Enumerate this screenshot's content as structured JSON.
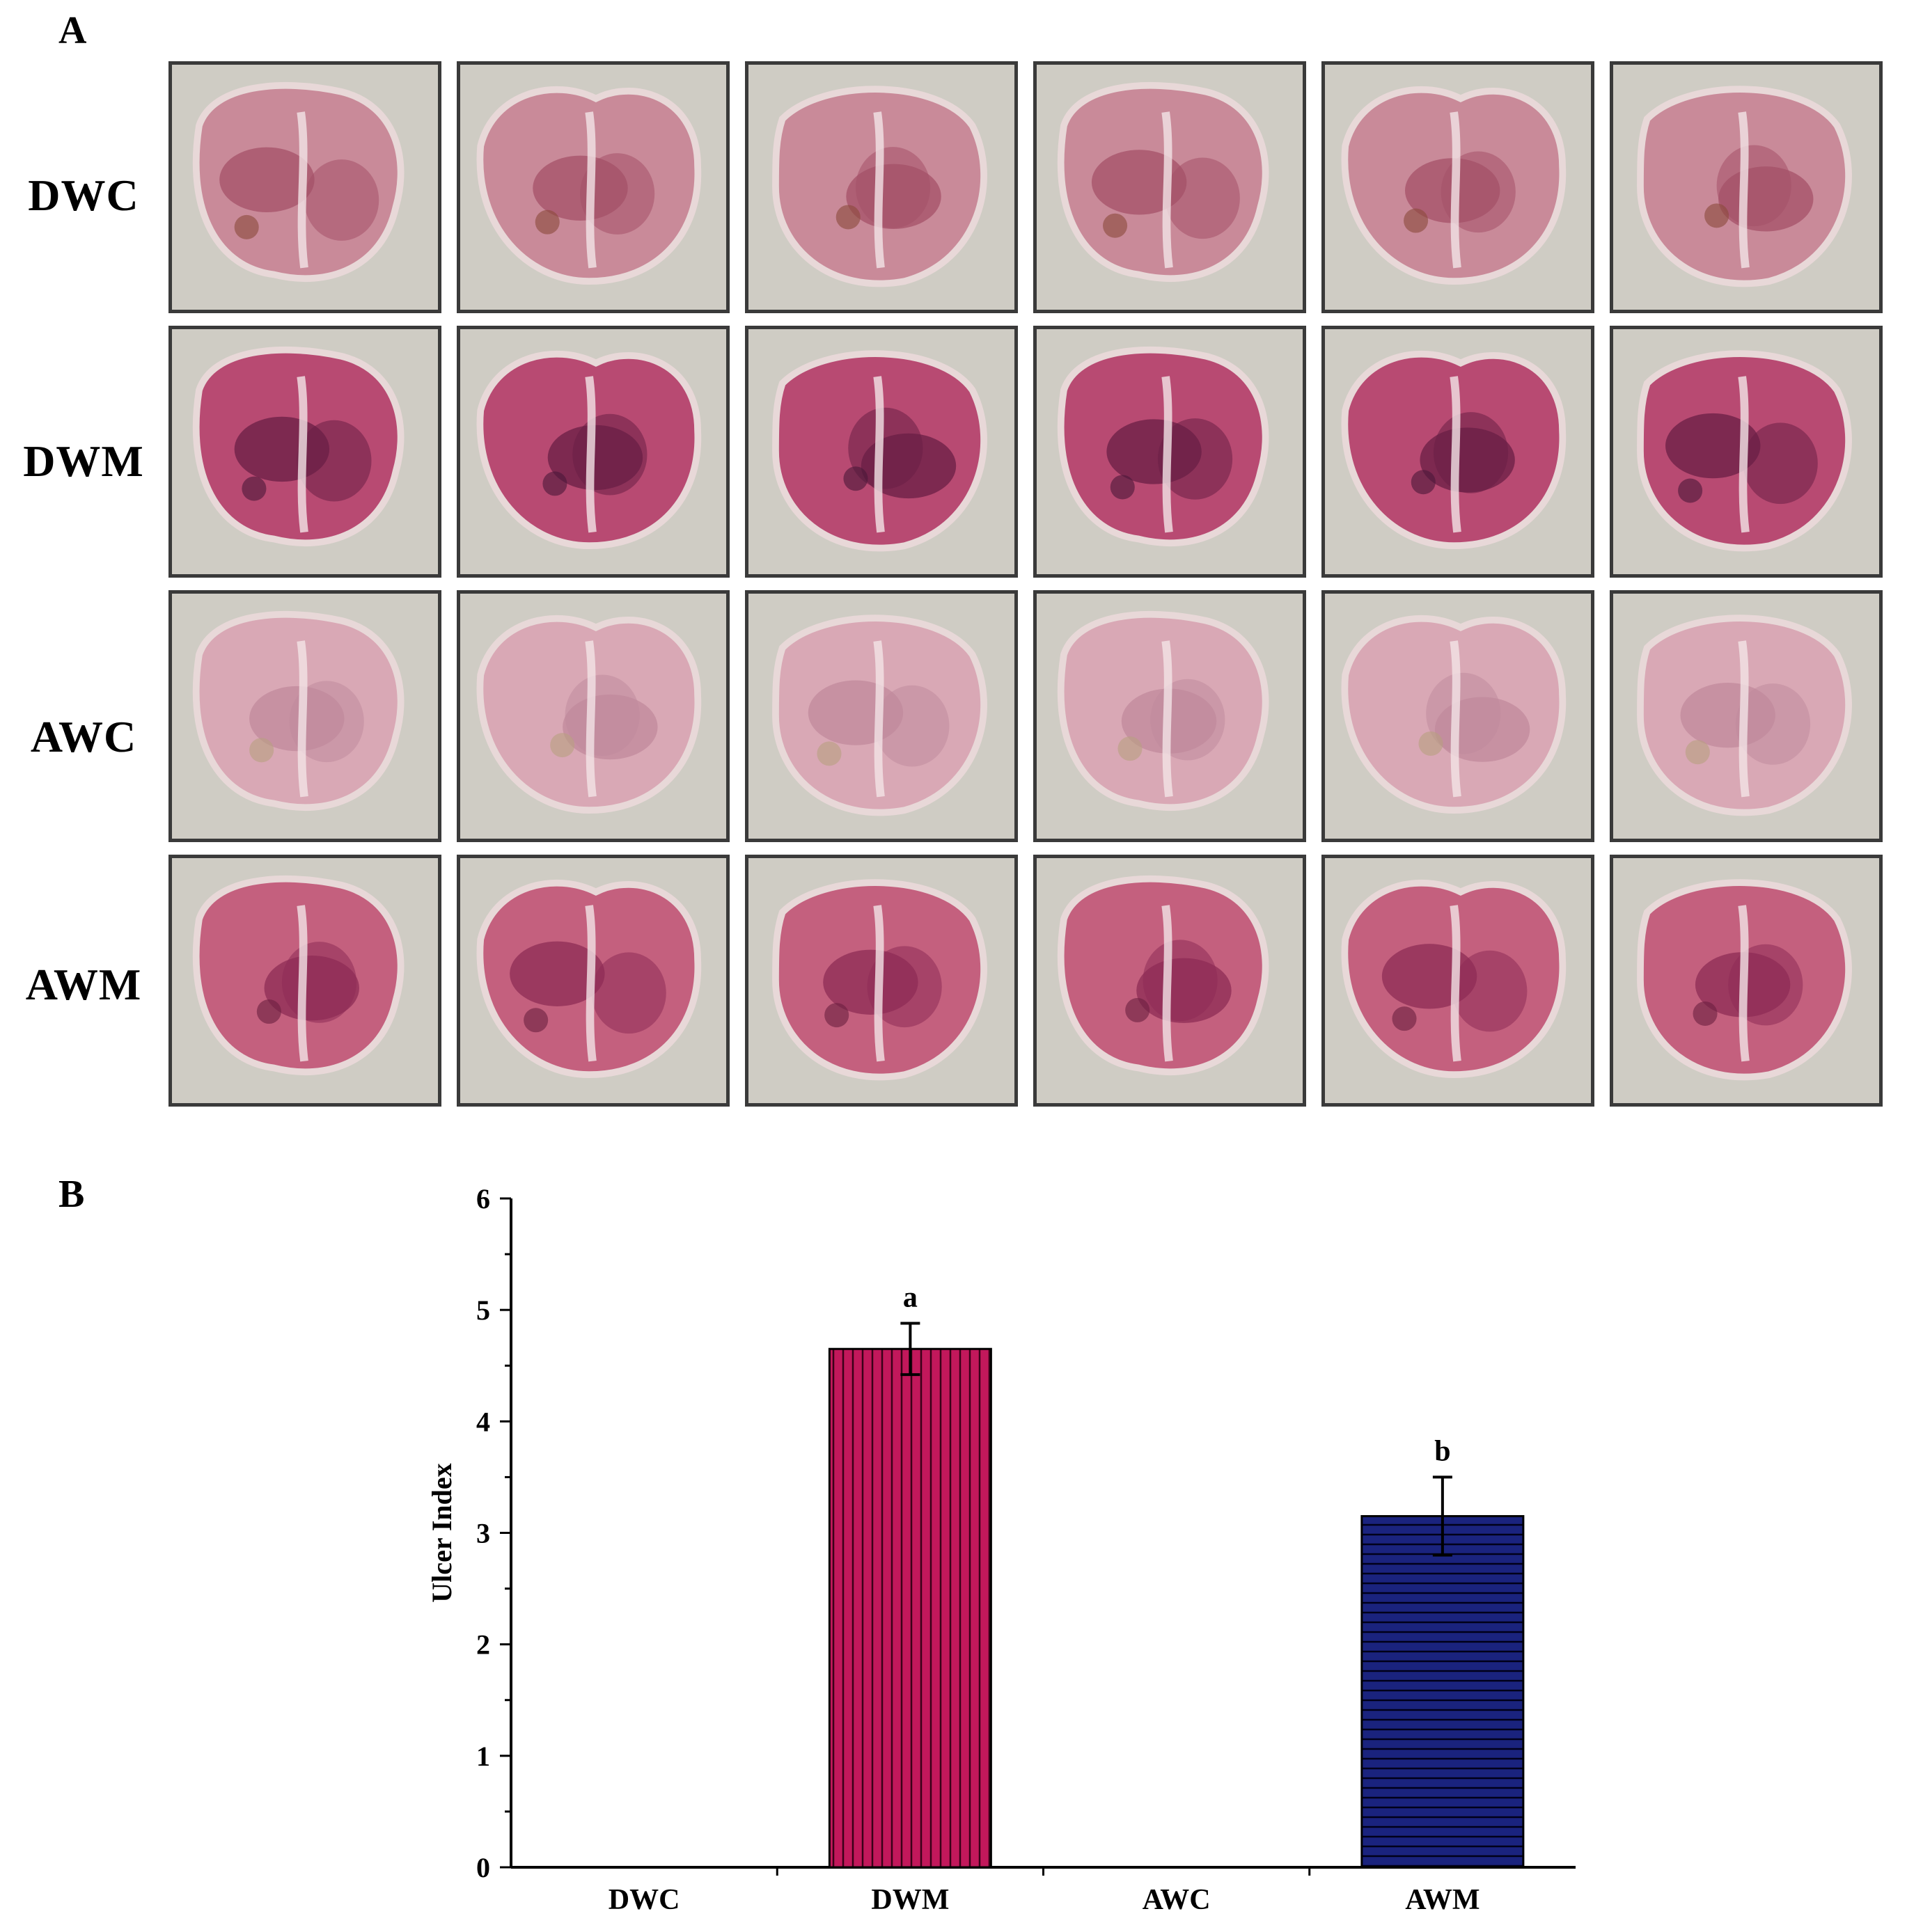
{
  "panel_a": {
    "label": "A",
    "rows": [
      {
        "label": "DWC",
        "tone": "#c98a99",
        "dark": "#a45068",
        "lesion": "#8a4a3a"
      },
      {
        "label": "DWM",
        "tone": "#b84a72",
        "dark": "#6a1f45",
        "lesion": "#4a1838"
      },
      {
        "label": "AWC",
        "tone": "#d9a8b5",
        "dark": "#c08a9c",
        "lesion": "#b8a080"
      },
      {
        "label": "AWM",
        "tone": "#c4607e",
        "dark": "#8e2c55",
        "lesion": "#6a2040"
      }
    ],
    "columns": 6,
    "background_tone": "#cfccc4"
  },
  "panel_b": {
    "label": "B"
  },
  "chart_data": {
    "type": "bar",
    "title": "",
    "xlabel": "",
    "ylabel": "Ulcer Index",
    "ylim": [
      0,
      6
    ],
    "yticks": [
      "0",
      "1",
      "2",
      "3",
      "4",
      "5",
      "6"
    ],
    "categories": [
      "DWC",
      "DWM",
      "AWC",
      "AWM"
    ],
    "values": [
      0,
      4.65,
      0,
      3.15
    ],
    "errors": [
      0,
      0.23,
      0,
      0.35
    ],
    "annotations": [
      "",
      "a",
      "",
      "b"
    ],
    "colors": [
      "#c2185b",
      "#c2185b",
      "#1a237e",
      "#1a237e"
    ],
    "patterns": [
      "",
      "vertical",
      "",
      "horizontal"
    ]
  }
}
